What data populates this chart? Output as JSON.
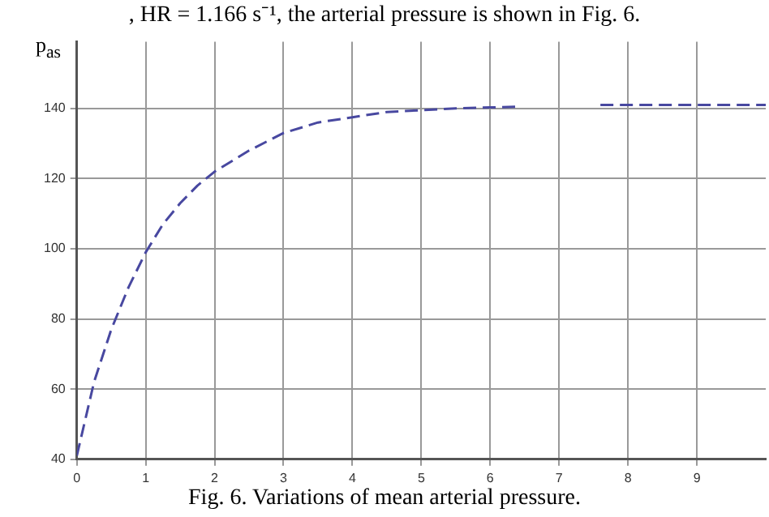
{
  "chart_data": {
    "type": "line",
    "ylabel": "p$_{as}$",
    "annotations": [
      ", HR = 1.166 s⁻¹, the arterial pressure is shown in Fig. 6.",
      "Fig. 6. Variations of mean arterial pressure."
    ],
    "x": [
      0,
      0.25,
      0.5,
      0.75,
      1,
      1.25,
      1.5,
      1.75,
      2,
      2.5,
      3,
      3.5,
      4,
      4.5,
      5,
      5.5,
      6,
      6.4,
      7,
      7.6,
      8,
      9,
      10
    ],
    "series": [
      {
        "color": "#4848a0",
        "values": [
          41,
          62,
          77,
          89,
          99,
          107,
          113,
          118,
          122,
          128,
          133,
          136,
          137.5,
          139,
          139.5,
          140,
          140.3,
          140.5,
          null,
          141,
          141,
          141,
          141
        ]
      }
    ],
    "xlim": [
      0,
      10
    ],
    "xticks": [
      0,
      1,
      2,
      3,
      4,
      5,
      6,
      7,
      8,
      9
    ],
    "ylim": [
      40,
      159
    ],
    "yticks": [
      40,
      60,
      80,
      100,
      120,
      140
    ],
    "grid": true,
    "line_style": "dashed",
    "marker": "none",
    "legend": false
  }
}
